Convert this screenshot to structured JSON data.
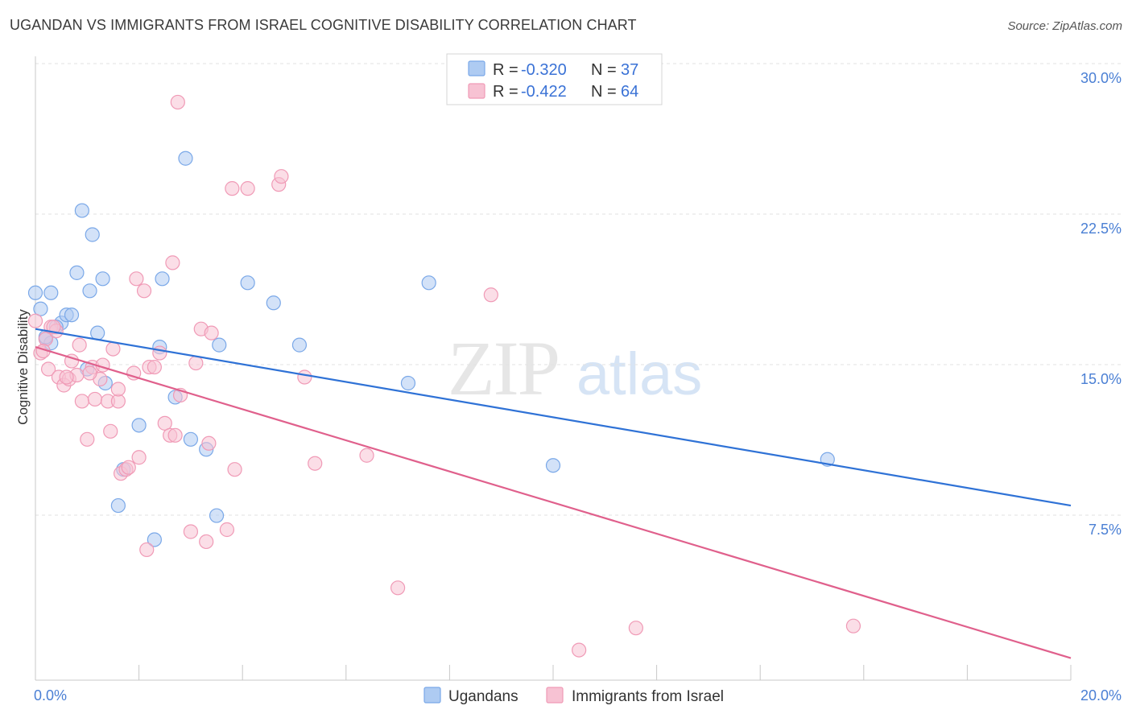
{
  "header": {
    "title": "UGANDAN VS IMMIGRANTS FROM ISRAEL COGNITIVE DISABILITY CORRELATION CHART",
    "source": "Source: ZipAtlas.com"
  },
  "watermark": {
    "zip": "ZIP",
    "atlas": "atlas"
  },
  "chart_data": {
    "type": "scatter",
    "title": "UGANDAN VS IMMIGRANTS FROM ISRAEL COGNITIVE DISABILITY CORRELATION CHART",
    "xlabel": "",
    "ylabel": "Cognitive Disability",
    "xlim": [
      0,
      20
    ],
    "ylim": [
      0,
      31.5
    ],
    "x_ticks": [
      "0.0%",
      "20.0%"
    ],
    "y_ticks": [
      {
        "value": 30.0,
        "label": "30.0%"
      },
      {
        "value": 22.5,
        "label": "22.5%"
      },
      {
        "value": 15.0,
        "label": "15.0%"
      },
      {
        "value": 7.5,
        "label": "7.5%"
      }
    ],
    "grid": true,
    "legend_position": "top-center",
    "stats": [
      {
        "r_label": "R = ",
        "r": "-0.320",
        "n_label": "N = ",
        "n": "37"
      },
      {
        "r_label": "R = ",
        "r": "-0.422",
        "n_label": "N = ",
        "n": "64"
      }
    ],
    "series": [
      {
        "name": "Ugandans",
        "color": "#7aa8e8",
        "fill": "#aecbf2",
        "trend_color": "#2f72d6",
        "trend": [
          [
            0,
            17.5
          ],
          [
            20,
            8.7
          ]
        ],
        "points": [
          [
            0.0,
            19.3
          ],
          [
            0.1,
            18.5
          ],
          [
            0.2,
            17.0
          ],
          [
            0.3,
            19.3
          ],
          [
            0.3,
            16.8
          ],
          [
            0.5,
            17.8
          ],
          [
            0.6,
            18.2
          ],
          [
            0.7,
            18.2
          ],
          [
            0.8,
            20.3
          ],
          [
            0.9,
            23.4
          ],
          [
            1.0,
            15.5
          ],
          [
            1.05,
            19.4
          ],
          [
            1.1,
            22.2
          ],
          [
            1.2,
            17.3
          ],
          [
            1.3,
            20.0
          ],
          [
            1.35,
            14.8
          ],
          [
            1.6,
            8.7
          ],
          [
            1.7,
            10.5
          ],
          [
            2.0,
            12.7
          ],
          [
            2.3,
            7.0
          ],
          [
            2.4,
            16.6
          ],
          [
            2.45,
            20.0
          ],
          [
            2.7,
            14.1
          ],
          [
            2.9,
            26.0
          ],
          [
            3.0,
            12.0
          ],
          [
            3.3,
            11.5
          ],
          [
            3.5,
            8.2
          ],
          [
            3.55,
            16.7
          ],
          [
            4.1,
            19.8
          ],
          [
            4.6,
            18.8
          ],
          [
            5.1,
            16.7
          ],
          [
            7.2,
            14.8
          ],
          [
            7.6,
            19.8
          ],
          [
            10.0,
            10.7
          ],
          [
            15.3,
            11.0
          ],
          [
            0.4,
            17.6
          ],
          [
            0.2,
            17.1
          ]
        ]
      },
      {
        "name": "Immigrants from Israel",
        "color": "#f09ab6",
        "fill": "#f7c2d3",
        "trend_color": "#e0608c",
        "trend": [
          [
            0,
            16.6
          ],
          [
            20,
            1.1
          ]
        ],
        "points": [
          [
            0.0,
            17.9
          ],
          [
            0.1,
            16.3
          ],
          [
            0.2,
            17.0
          ],
          [
            0.25,
            15.5
          ],
          [
            0.3,
            17.6
          ],
          [
            0.4,
            17.4
          ],
          [
            0.45,
            15.1
          ],
          [
            0.55,
            14.7
          ],
          [
            0.65,
            15.0
          ],
          [
            0.7,
            15.9
          ],
          [
            0.8,
            15.2
          ],
          [
            0.85,
            16.7
          ],
          [
            0.9,
            13.9
          ],
          [
            1.0,
            12.0
          ],
          [
            1.1,
            15.6
          ],
          [
            1.15,
            14.0
          ],
          [
            1.25,
            15.0
          ],
          [
            1.3,
            15.7
          ],
          [
            1.4,
            13.9
          ],
          [
            1.45,
            12.4
          ],
          [
            1.5,
            16.5
          ],
          [
            1.6,
            13.9
          ],
          [
            1.65,
            10.3
          ],
          [
            1.75,
            10.5
          ],
          [
            1.8,
            10.6
          ],
          [
            1.9,
            15.3
          ],
          [
            2.0,
            11.1
          ],
          [
            2.1,
            19.4
          ],
          [
            2.15,
            6.5
          ],
          [
            2.2,
            15.6
          ],
          [
            2.4,
            16.3
          ],
          [
            2.5,
            12.8
          ],
          [
            2.6,
            12.2
          ],
          [
            2.65,
            20.8
          ],
          [
            2.7,
            12.2
          ],
          [
            2.8,
            14.2
          ],
          [
            3.0,
            7.4
          ],
          [
            3.1,
            15.8
          ],
          [
            3.2,
            17.5
          ],
          [
            3.3,
            6.9
          ],
          [
            3.35,
            11.8
          ],
          [
            3.4,
            17.3
          ],
          [
            3.8,
            24.5
          ],
          [
            3.7,
            7.5
          ],
          [
            3.85,
            10.5
          ],
          [
            4.1,
            24.5
          ],
          [
            4.7,
            24.7
          ],
          [
            4.75,
            25.1
          ],
          [
            5.2,
            15.1
          ],
          [
            5.4,
            10.8
          ],
          [
            6.4,
            11.2
          ],
          [
            7.0,
            4.6
          ],
          [
            8.8,
            19.2
          ],
          [
            10.5,
            1.5
          ],
          [
            11.6,
            2.6
          ],
          [
            15.8,
            2.7
          ],
          [
            2.75,
            28.8
          ],
          [
            1.6,
            14.5
          ],
          [
            0.15,
            16.4
          ],
          [
            2.3,
            15.6
          ],
          [
            1.05,
            15.3
          ],
          [
            0.6,
            15.1
          ],
          [
            1.95,
            20.0
          ],
          [
            0.35,
            17.6
          ]
        ]
      }
    ]
  }
}
